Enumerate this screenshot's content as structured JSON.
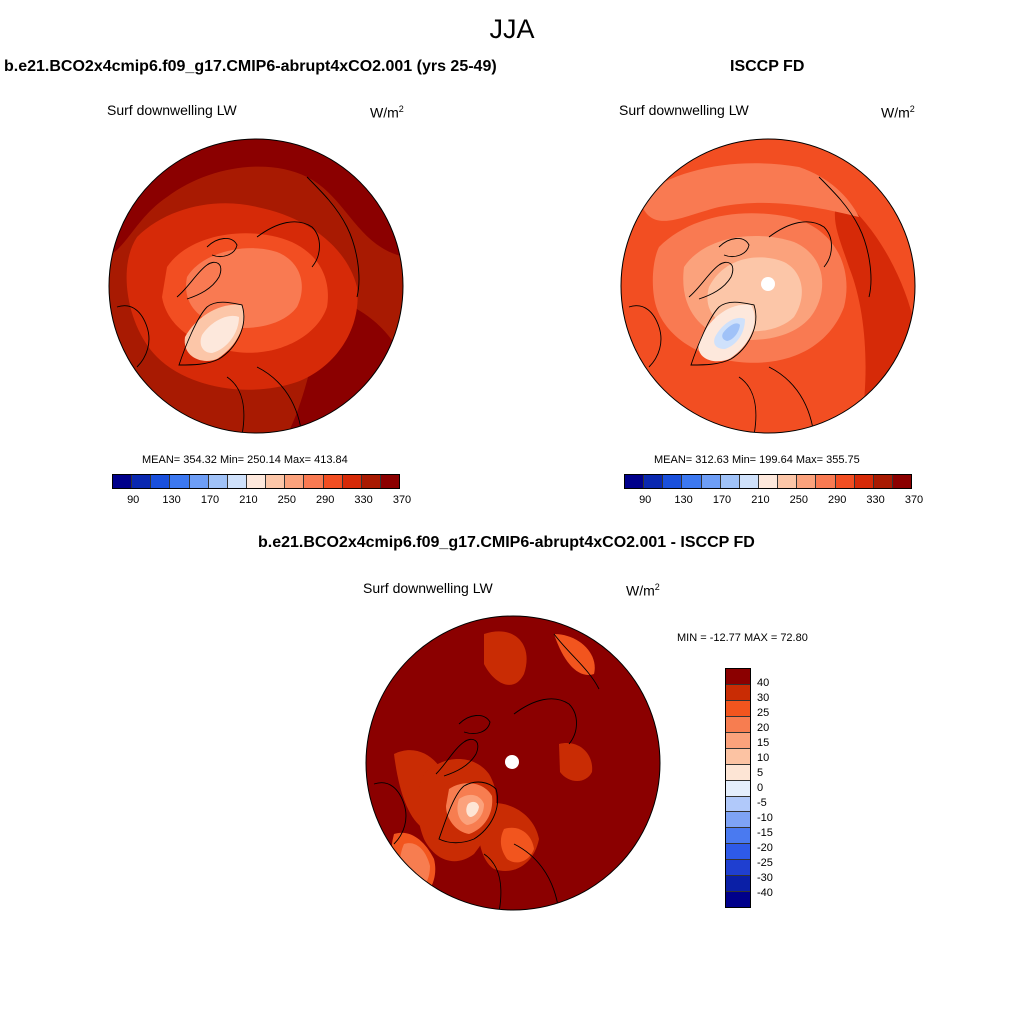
{
  "title": "JJA",
  "palette": {
    "abs": [
      "#00008b",
      "#0a28b0",
      "#1a50dc",
      "#3c78f0",
      "#6e9ef6",
      "#a0c2f8",
      "#cfe1fb",
      "#fde8dc",
      "#fcc6a8",
      "#fba27c",
      "#f97a52",
      "#f24e22",
      "#d62a08",
      "#a81a02",
      "#8b0000"
    ],
    "diff": [
      "#00008b",
      "#0a1fa6",
      "#1f3fd0",
      "#2e5ae8",
      "#4a7af0",
      "#7ea3f5",
      "#b1c9fa",
      "#e4eefc",
      "#fde5d5",
      "#fcc3a3",
      "#fba27c",
      "#f77d50",
      "#f2551e",
      "#c92c04",
      "#8b0000"
    ]
  },
  "panels": {
    "model": {
      "title": "b.e21.BCO2x4cmip6.f09_g17.CMIP6-abrupt4xCO2.001 (yrs 25-49)",
      "variable": "Surf downwelling LW",
      "units": "W/m",
      "units_exp": "2",
      "stats": "MEAN= 354.32  Min= 250.14  Max= 413.84",
      "ticks": [
        "90",
        "130",
        "170",
        "210",
        "250",
        "290",
        "330",
        "370"
      ]
    },
    "obs": {
      "title": "ISCCP FD",
      "variable": "Surf downwelling LW",
      "units": "W/m",
      "units_exp": "2",
      "stats": "MEAN= 312.63  Min= 199.64  Max= 355.75",
      "ticks": [
        "90",
        "130",
        "170",
        "210",
        "250",
        "290",
        "330",
        "370"
      ]
    },
    "diff": {
      "title": "b.e21.BCO2x4cmip6.f09_g17.CMIP6-abrupt4xCO2.001 - ISCCP FD",
      "variable": "Surf downwelling LW",
      "units": "W/m",
      "units_exp": "2",
      "stats": "MIN = -12.77 MAX =  72.80",
      "ticks": [
        "40",
        "30",
        "25",
        "20",
        "15",
        "10",
        "5",
        "0",
        "-5",
        "-10",
        "-15",
        "-20",
        "-25",
        "-30",
        "-40"
      ]
    }
  }
}
